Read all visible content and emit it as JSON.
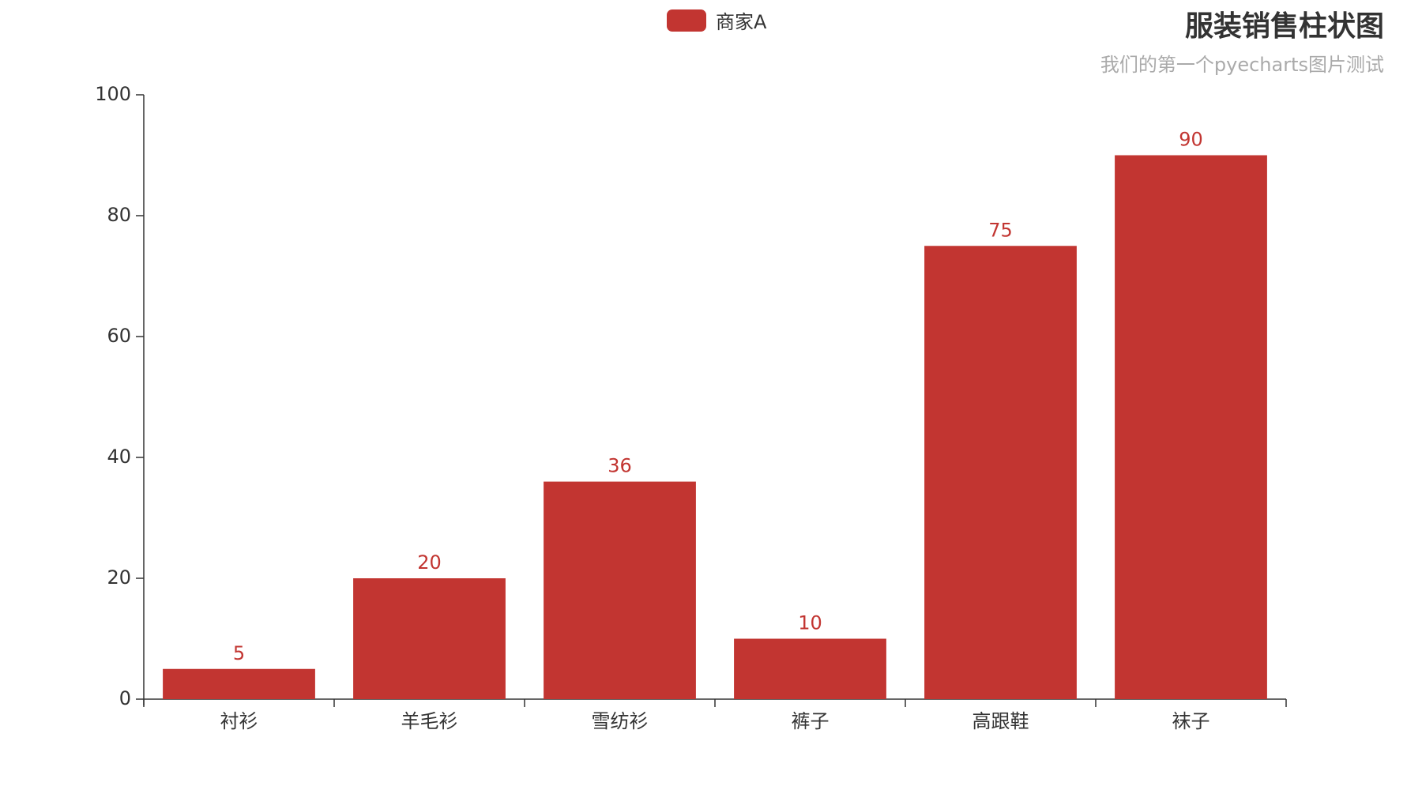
{
  "chart_data": {
    "type": "bar",
    "title": "服装销售柱状图",
    "subtitle": "我们的第一个pyecharts图片测试",
    "categories": [
      "衬衫",
      "羊毛衫",
      "雪纺衫",
      "裤子",
      "高跟鞋",
      "袜子"
    ],
    "series": [
      {
        "name": "商家A",
        "values": [
          5,
          20,
          36,
          10,
          75,
          90
        ],
        "color": "#c23531"
      }
    ],
    "xlabel": "",
    "ylabel": "",
    "ylim": [
      0,
      100
    ],
    "yticks": [
      0,
      20,
      40,
      60,
      80,
      100
    ],
    "grid": false,
    "legend": "top-center",
    "data_labels": true
  }
}
